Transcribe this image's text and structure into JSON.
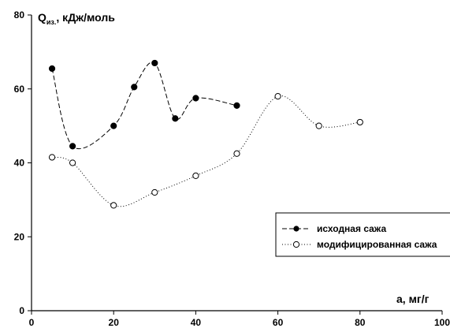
{
  "chart_data": {
    "type": "line",
    "ylabel_main": "Q",
    "ylabel_sub": "из.",
    "ylabel_rest": ", кДж/моль",
    "xlabel": "a, мг/г",
    "xlim": [
      0,
      100
    ],
    "ylim": [
      0,
      80
    ],
    "x_ticks": [
      0,
      20,
      40,
      60,
      80,
      100
    ],
    "y_ticks": [
      0,
      20,
      40,
      60,
      80
    ],
    "grid": false,
    "legend_position": "lower-right",
    "series": [
      {
        "name": "исходная сажа",
        "marker": "filled-circle",
        "line_style": "dashed",
        "x": [
          5,
          10,
          20,
          25,
          30,
          35,
          40,
          50
        ],
        "y": [
          65.5,
          44.5,
          50,
          60.5,
          67,
          52,
          57.5,
          55.5
        ]
      },
      {
        "name": "модифицированная сажа",
        "marker": "open-circle",
        "line_style": "dotted",
        "x": [
          5,
          10,
          20,
          30,
          40,
          50,
          60,
          70,
          80
        ],
        "y": [
          41.5,
          40,
          28.5,
          32,
          36.5,
          42.5,
          58,
          50,
          51
        ]
      }
    ]
  }
}
